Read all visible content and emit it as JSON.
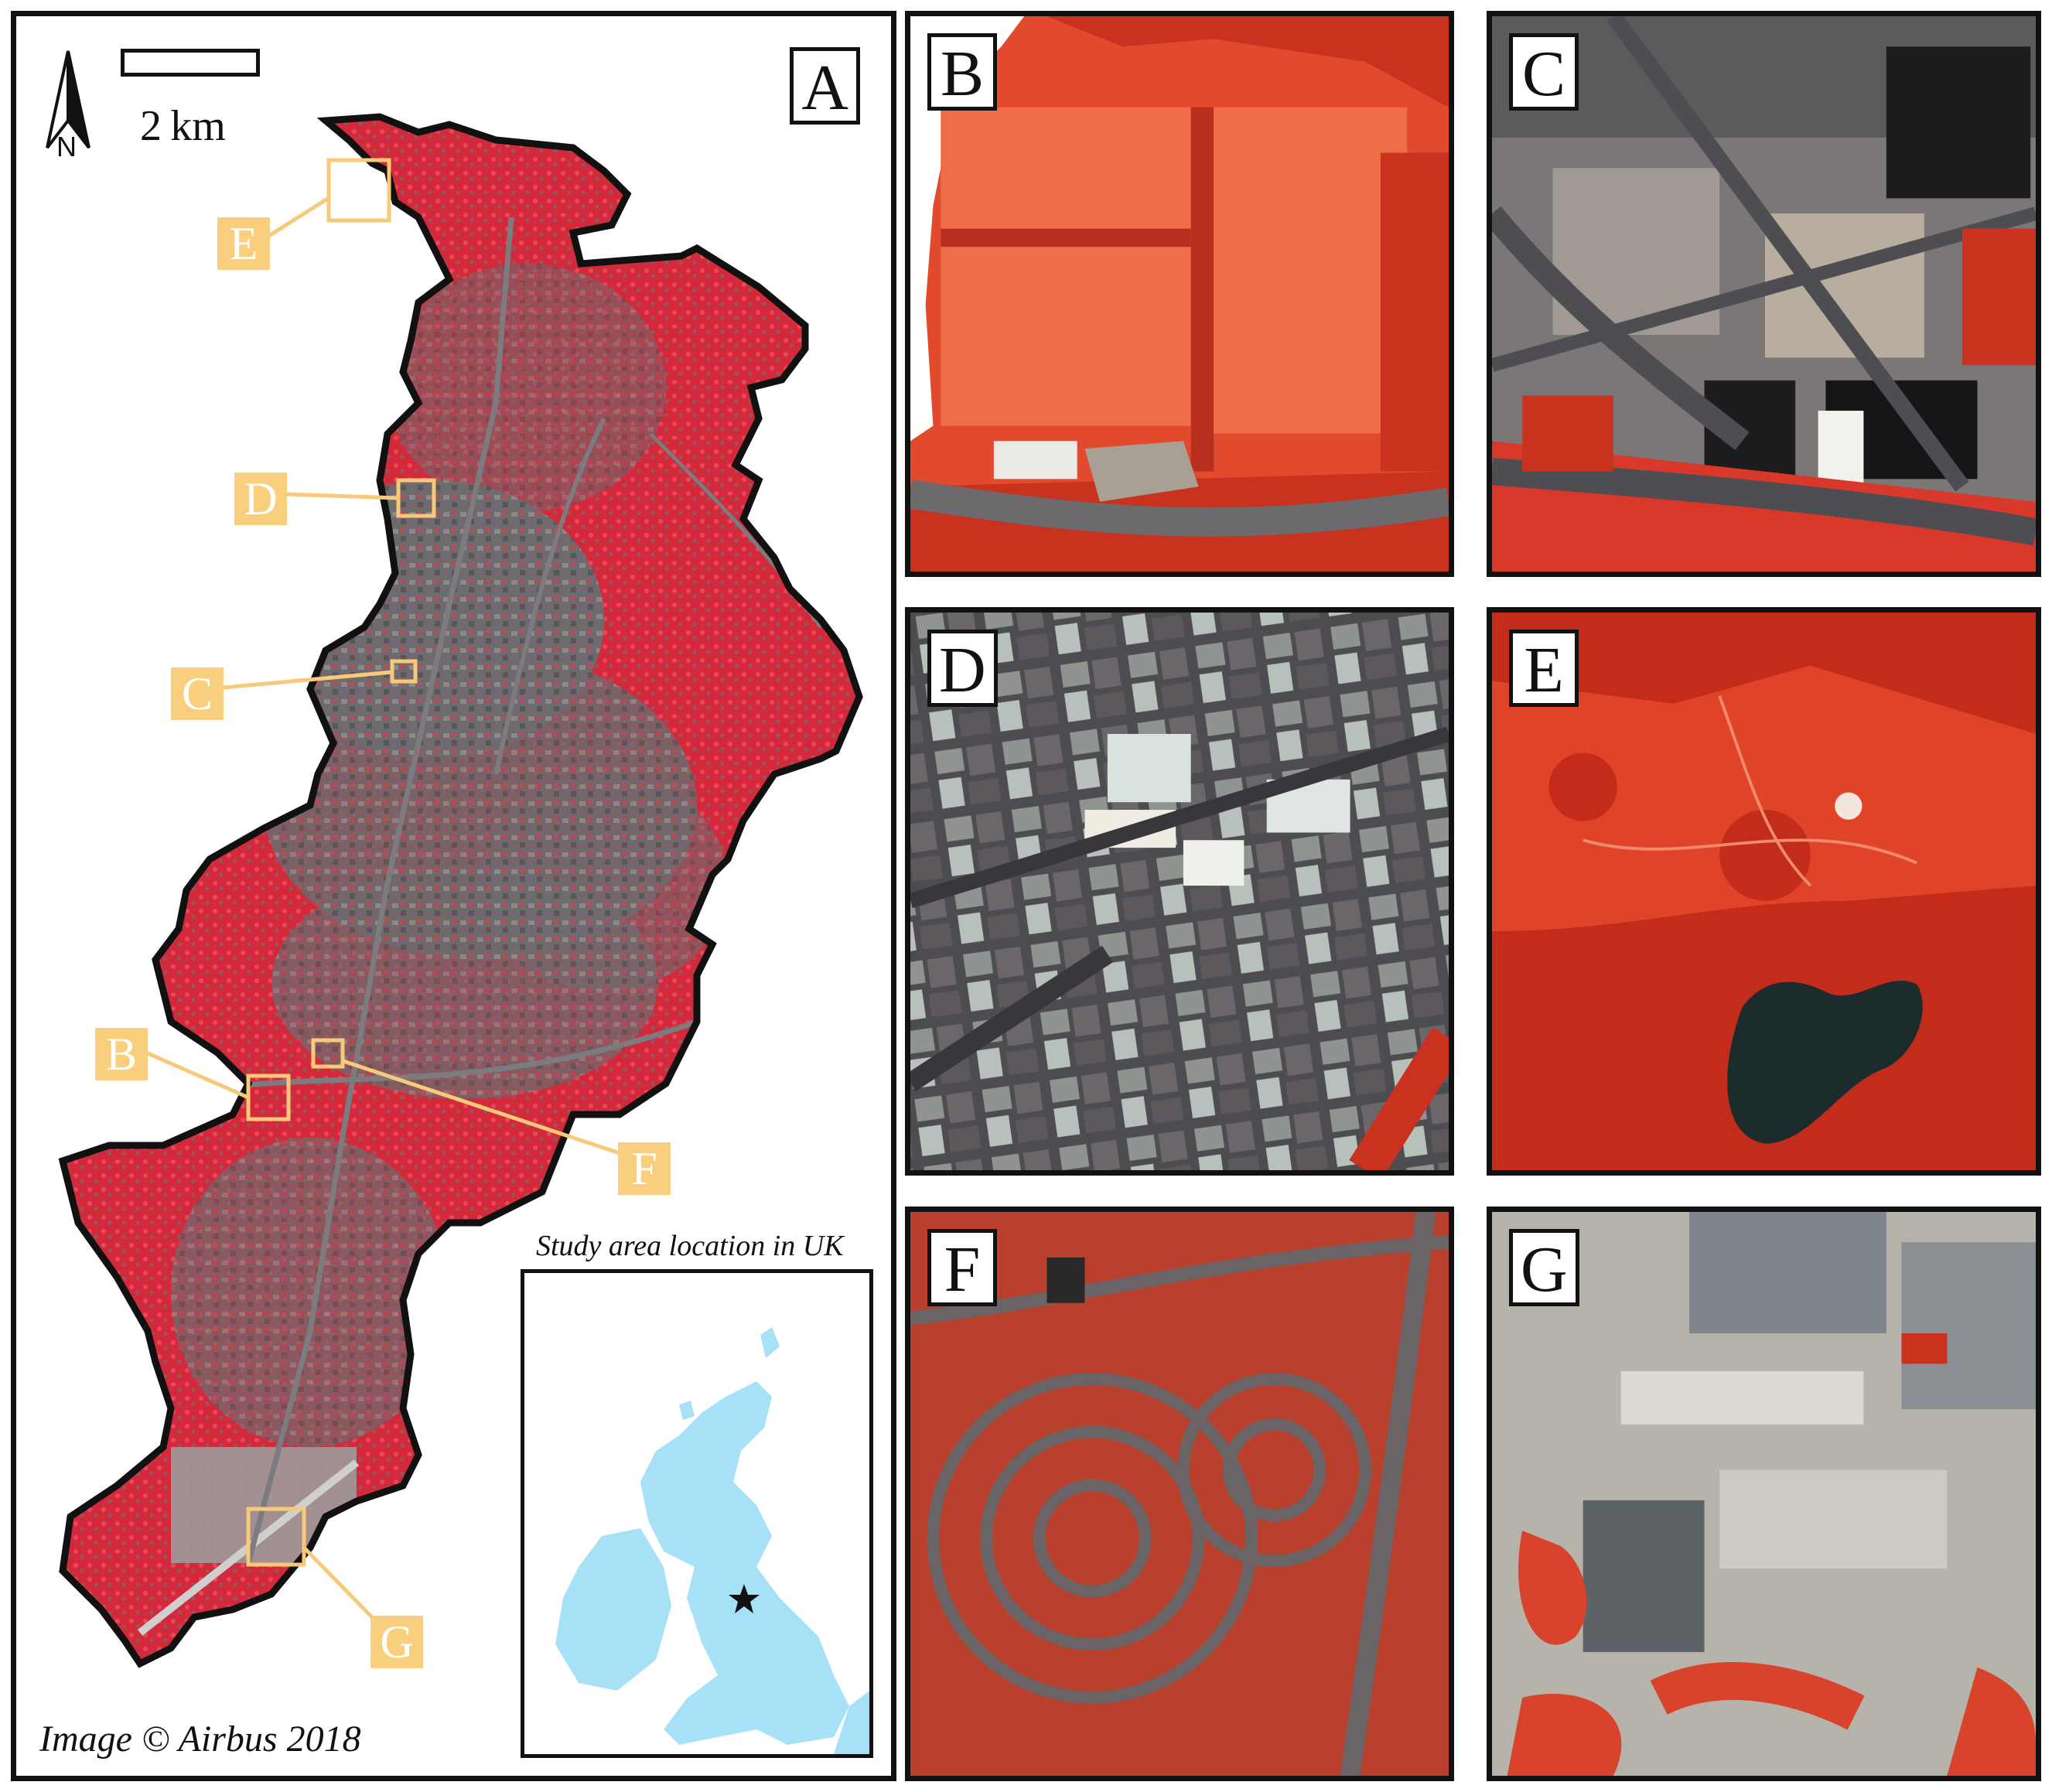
{
  "panels": {
    "a": {
      "label": "A"
    },
    "b": {
      "label": "B"
    },
    "c": {
      "label": "C"
    },
    "d": {
      "label": "D"
    },
    "e": {
      "label": "E"
    },
    "f": {
      "label": "F"
    },
    "g": {
      "label": "G"
    }
  },
  "map": {
    "north_label": "N",
    "scale_label": "2 km",
    "callouts": [
      "E",
      "D",
      "C",
      "B",
      "F",
      "G"
    ],
    "inset_title": "Study area location in UK",
    "credit": "Image © Airbus 2018",
    "colors": {
      "vegetation": "#e8283a",
      "urban": "#6e6a6e",
      "callout": "#f9cf7d",
      "uk_land": "#a6e1f7"
    },
    "location_marker": "star-icon"
  }
}
